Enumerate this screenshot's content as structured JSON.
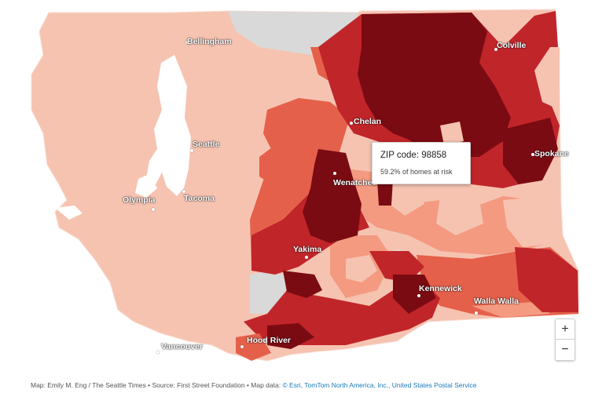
{
  "colors": {
    "low": "#f6c3b1",
    "low_mid": "#f39a80",
    "mid": "#e5604a",
    "high": "#c0252a",
    "highest": "#7b0b12",
    "no_data": "#d9d9d9",
    "link": "#1a7ab6"
  },
  "cities": [
    {
      "name": "Bellingham"
    },
    {
      "name": "Colville"
    },
    {
      "name": "Chelan"
    },
    {
      "name": "Seattle"
    },
    {
      "name": "Spokane"
    },
    {
      "name": "Wenatchee"
    },
    {
      "name": "Olympia"
    },
    {
      "name": "Tacoma"
    },
    {
      "name": "Yakima"
    },
    {
      "name": "Kennewick"
    },
    {
      "name": "Walla Walla"
    },
    {
      "name": "Vancouver"
    },
    {
      "name": "Hood River"
    }
  ],
  "tooltip": {
    "zip": "ZIP code: 98858",
    "risk": "59.2% of homes at risk"
  },
  "zoom": {
    "in": "+",
    "out": "−"
  },
  "credit": {
    "text": "Map: Emily M. Eng / The Seattle Times • Source: First Street Foundation • Map data: ",
    "link1": "© Esri, TomTom North America, Inc.",
    "sep": ", ",
    "link2": "United States Postal Service"
  }
}
